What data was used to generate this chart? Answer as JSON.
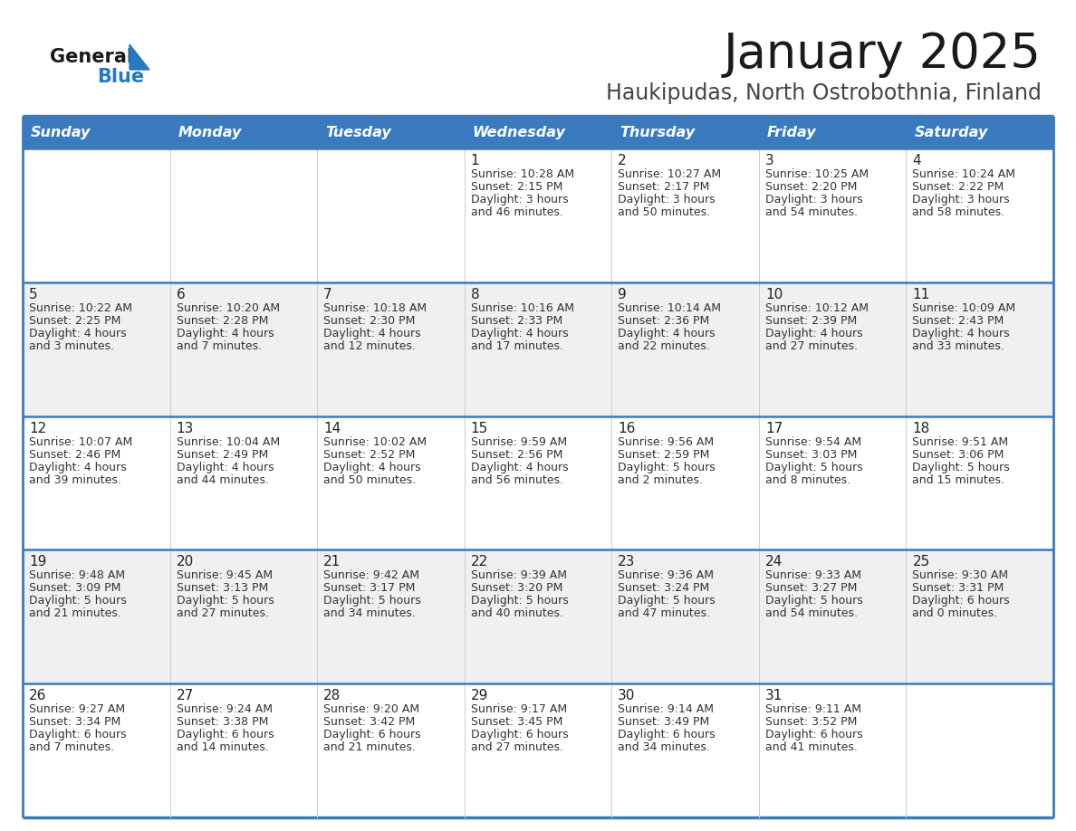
{
  "title": "January 2025",
  "subtitle": "Haukipudas, North Ostrobothnia, Finland",
  "header_color": "#3a7bbf",
  "header_text_color": "#ffffff",
  "cell_bg_color": "#ffffff",
  "row_bg_alt": "#f0f0f0",
  "day_headers": [
    "Sunday",
    "Monday",
    "Tuesday",
    "Wednesday",
    "Thursday",
    "Friday",
    "Saturday"
  ],
  "title_color": "#1a1a1a",
  "subtitle_color": "#444444",
  "day_num_color": "#222222",
  "cell_text_color": "#333333",
  "border_color": "#3a7bbf",
  "logo_general_color": "#1a1a1a",
  "logo_blue_color": "#2878be",
  "weeks": [
    [
      {
        "day": "",
        "info": ""
      },
      {
        "day": "",
        "info": ""
      },
      {
        "day": "",
        "info": ""
      },
      {
        "day": "1",
        "info": "Sunrise: 10:28 AM\nSunset: 2:15 PM\nDaylight: 3 hours\nand 46 minutes."
      },
      {
        "day": "2",
        "info": "Sunrise: 10:27 AM\nSunset: 2:17 PM\nDaylight: 3 hours\nand 50 minutes."
      },
      {
        "day": "3",
        "info": "Sunrise: 10:25 AM\nSunset: 2:20 PM\nDaylight: 3 hours\nand 54 minutes."
      },
      {
        "day": "4",
        "info": "Sunrise: 10:24 AM\nSunset: 2:22 PM\nDaylight: 3 hours\nand 58 minutes."
      }
    ],
    [
      {
        "day": "5",
        "info": "Sunrise: 10:22 AM\nSunset: 2:25 PM\nDaylight: 4 hours\nand 3 minutes."
      },
      {
        "day": "6",
        "info": "Sunrise: 10:20 AM\nSunset: 2:28 PM\nDaylight: 4 hours\nand 7 minutes."
      },
      {
        "day": "7",
        "info": "Sunrise: 10:18 AM\nSunset: 2:30 PM\nDaylight: 4 hours\nand 12 minutes."
      },
      {
        "day": "8",
        "info": "Sunrise: 10:16 AM\nSunset: 2:33 PM\nDaylight: 4 hours\nand 17 minutes."
      },
      {
        "day": "9",
        "info": "Sunrise: 10:14 AM\nSunset: 2:36 PM\nDaylight: 4 hours\nand 22 minutes."
      },
      {
        "day": "10",
        "info": "Sunrise: 10:12 AM\nSunset: 2:39 PM\nDaylight: 4 hours\nand 27 minutes."
      },
      {
        "day": "11",
        "info": "Sunrise: 10:09 AM\nSunset: 2:43 PM\nDaylight: 4 hours\nand 33 minutes."
      }
    ],
    [
      {
        "day": "12",
        "info": "Sunrise: 10:07 AM\nSunset: 2:46 PM\nDaylight: 4 hours\nand 39 minutes."
      },
      {
        "day": "13",
        "info": "Sunrise: 10:04 AM\nSunset: 2:49 PM\nDaylight: 4 hours\nand 44 minutes."
      },
      {
        "day": "14",
        "info": "Sunrise: 10:02 AM\nSunset: 2:52 PM\nDaylight: 4 hours\nand 50 minutes."
      },
      {
        "day": "15",
        "info": "Sunrise: 9:59 AM\nSunset: 2:56 PM\nDaylight: 4 hours\nand 56 minutes."
      },
      {
        "day": "16",
        "info": "Sunrise: 9:56 AM\nSunset: 2:59 PM\nDaylight: 5 hours\nand 2 minutes."
      },
      {
        "day": "17",
        "info": "Sunrise: 9:54 AM\nSunset: 3:03 PM\nDaylight: 5 hours\nand 8 minutes."
      },
      {
        "day": "18",
        "info": "Sunrise: 9:51 AM\nSunset: 3:06 PM\nDaylight: 5 hours\nand 15 minutes."
      }
    ],
    [
      {
        "day": "19",
        "info": "Sunrise: 9:48 AM\nSunset: 3:09 PM\nDaylight: 5 hours\nand 21 minutes."
      },
      {
        "day": "20",
        "info": "Sunrise: 9:45 AM\nSunset: 3:13 PM\nDaylight: 5 hours\nand 27 minutes."
      },
      {
        "day": "21",
        "info": "Sunrise: 9:42 AM\nSunset: 3:17 PM\nDaylight: 5 hours\nand 34 minutes."
      },
      {
        "day": "22",
        "info": "Sunrise: 9:39 AM\nSunset: 3:20 PM\nDaylight: 5 hours\nand 40 minutes."
      },
      {
        "day": "23",
        "info": "Sunrise: 9:36 AM\nSunset: 3:24 PM\nDaylight: 5 hours\nand 47 minutes."
      },
      {
        "day": "24",
        "info": "Sunrise: 9:33 AM\nSunset: 3:27 PM\nDaylight: 5 hours\nand 54 minutes."
      },
      {
        "day": "25",
        "info": "Sunrise: 9:30 AM\nSunset: 3:31 PM\nDaylight: 6 hours\nand 0 minutes."
      }
    ],
    [
      {
        "day": "26",
        "info": "Sunrise: 9:27 AM\nSunset: 3:34 PM\nDaylight: 6 hours\nand 7 minutes."
      },
      {
        "day": "27",
        "info": "Sunrise: 9:24 AM\nSunset: 3:38 PM\nDaylight: 6 hours\nand 14 minutes."
      },
      {
        "day": "28",
        "info": "Sunrise: 9:20 AM\nSunset: 3:42 PM\nDaylight: 6 hours\nand 21 minutes."
      },
      {
        "day": "29",
        "info": "Sunrise: 9:17 AM\nSunset: 3:45 PM\nDaylight: 6 hours\nand 27 minutes."
      },
      {
        "day": "30",
        "info": "Sunrise: 9:14 AM\nSunset: 3:49 PM\nDaylight: 6 hours\nand 34 minutes."
      },
      {
        "day": "31",
        "info": "Sunrise: 9:11 AM\nSunset: 3:52 PM\nDaylight: 6 hours\nand 41 minutes."
      },
      {
        "day": "",
        "info": ""
      }
    ]
  ]
}
